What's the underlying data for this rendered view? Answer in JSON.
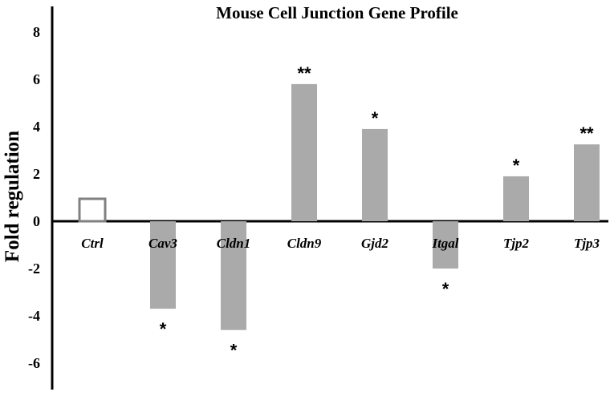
{
  "chart_data": {
    "type": "bar",
    "title": "Mouse Cell Junction Gene Profile",
    "ylabel": "Fold regulation",
    "xlabel": "",
    "ylim": [
      -6.5,
      9
    ],
    "yticks": [
      -6,
      -4,
      -2,
      0,
      2,
      4,
      6,
      8
    ],
    "ytick_labels": [
      "-6",
      "-4",
      "-2",
      "0",
      "2",
      "4",
      "6",
      "8"
    ],
    "categories": [
      "Ctrl",
      "Cav3",
      "Cldn1",
      "Cldn9",
      "Gjd2",
      "Itgal",
      "Tjp2",
      "Tjp3"
    ],
    "values": [
      1,
      -3.7,
      -4.6,
      5.8,
      3.9,
      -2.0,
      1.9,
      3.25
    ],
    "significance": [
      "",
      "*",
      "*",
      "**",
      "*",
      "*",
      "*",
      "**"
    ],
    "grid": false,
    "colors": {
      "bar": "#aaaaaa",
      "control_outline": "#808080",
      "axis": "#000000"
    }
  }
}
